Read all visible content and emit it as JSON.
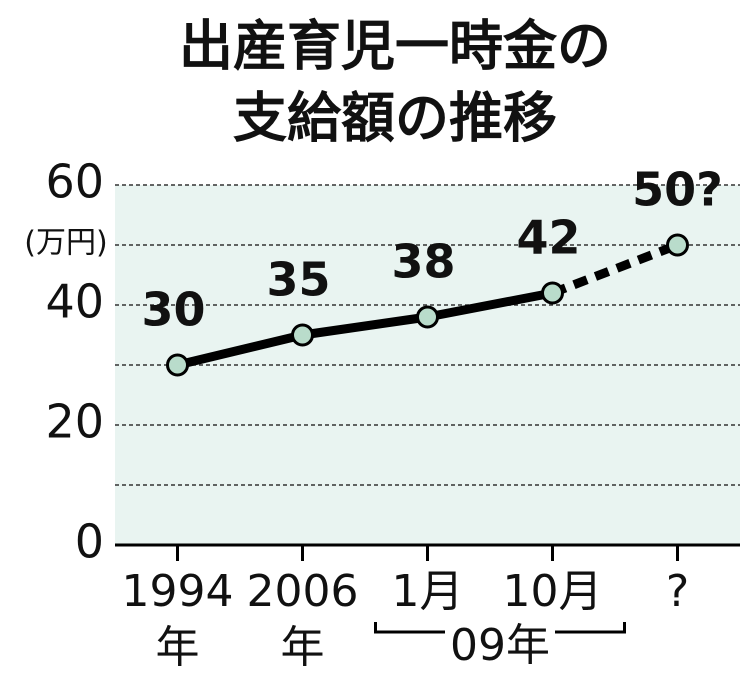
{
  "chart_data": {
    "type": "line",
    "title": [
      "出産育児一時金の",
      "支給額の推移"
    ],
    "y_unit": "(万円)",
    "categories": [
      [
        "1994",
        "年"
      ],
      [
        "2006",
        "年"
      ],
      [
        "1月"
      ],
      [
        "10月"
      ],
      [
        "?"
      ]
    ],
    "category_groups": [
      {
        "label": "09年",
        "start": 2,
        "end": 3
      }
    ],
    "values": [
      30,
      35,
      38,
      42,
      50
    ],
    "value_labels": [
      "30",
      "35",
      "38",
      "42",
      "50?"
    ],
    "projected": [
      false,
      false,
      false,
      false,
      true
    ],
    "ylim": [
      0,
      60
    ],
    "yticks": [
      0,
      20,
      40,
      60
    ],
    "minor_yticks": [
      10,
      30,
      50
    ],
    "grid": true,
    "color": "#000000",
    "marker_color": "#b9dccb",
    "plot_background": "#e9f4f1"
  }
}
